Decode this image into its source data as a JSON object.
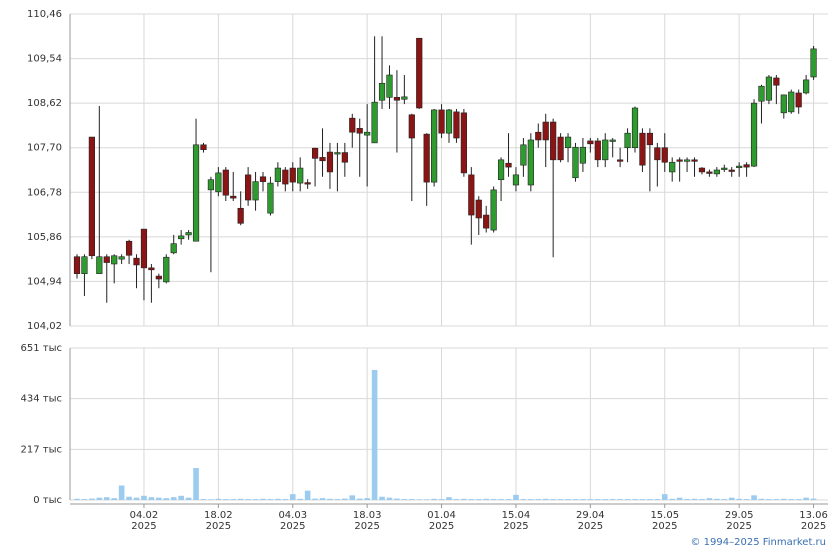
{
  "chart_data": [
    {
      "type": "candlestick",
      "ylim": [
        104.02,
        110.46
      ],
      "yticks": [
        {
          "value": 104.02,
          "label": "104,02"
        },
        {
          "value": 104.94,
          "label": "104,94"
        },
        {
          "value": 105.86,
          "label": "105,86"
        },
        {
          "value": 106.78,
          "label": "106,78"
        },
        {
          "value": 107.7,
          "label": "107,70"
        },
        {
          "value": 108.62,
          "label": "108,62"
        },
        {
          "value": 109.54,
          "label": "109,54"
        },
        {
          "value": 110.46,
          "label": "110,46"
        }
      ],
      "grid": true,
      "up_color": "#2f9a2f",
      "down_color": "#8b1414",
      "open": [
        105.45,
        105.1,
        107.92,
        105.1,
        105.45,
        105.3,
        105.4,
        105.77,
        105.42,
        106.02,
        105.22,
        105.05,
        104.93,
        105.53,
        105.82,
        105.9,
        105.77,
        107.76,
        106.83,
        106.79,
        107.24,
        106.7,
        106.45,
        107.14,
        106.62,
        107.1,
        106.35,
        107.0,
        107.24,
        107.28,
        106.97,
        106.98,
        107.69,
        107.5,
        107.61,
        107.57,
        107.6,
        108.31,
        108.1,
        107.96,
        107.8,
        108.68,
        108.74,
        108.74,
        108.7,
        108.38,
        109.96,
        107.98,
        106.99,
        108.48,
        108.0,
        108.44,
        108.42,
        107.14,
        106.62,
        106.31,
        106.0,
        107.04,
        107.38,
        106.93,
        107.34,
        106.93,
        108.02,
        108.23,
        108.23,
        107.92,
        107.7,
        107.08,
        107.38,
        107.84,
        107.84,
        107.45,
        107.84,
        107.45,
        107.7,
        107.7,
        108.0,
        108.0,
        107.7,
        107.7,
        107.2,
        107.45,
        107.42,
        107.45,
        107.28,
        107.2,
        107.16,
        107.26,
        107.24,
        107.3,
        107.35,
        107.32,
        108.66,
        108.68,
        109.14,
        108.42,
        108.44,
        108.83,
        108.83,
        109.16
      ],
      "high": [
        105.5,
        105.5,
        107.92,
        108.56,
        105.5,
        105.5,
        105.5,
        105.8,
        105.5,
        106.02,
        105.3,
        105.1,
        105.5,
        105.9,
        106.0,
        106.0,
        108.3,
        107.8,
        107.1,
        107.3,
        107.3,
        107.2,
        106.8,
        107.3,
        107.2,
        107.2,
        107.1,
        107.4,
        107.3,
        107.4,
        107.5,
        107.05,
        107.7,
        108.1,
        107.8,
        107.8,
        107.8,
        108.4,
        108.3,
        108.6,
        110.0,
        110.0,
        109.4,
        109.3,
        109.2,
        108.4,
        109.96,
        108.0,
        108.5,
        108.6,
        108.5,
        108.5,
        108.5,
        107.3,
        106.7,
        106.5,
        106.9,
        107.5,
        108.0,
        107.3,
        107.9,
        108.0,
        108.2,
        108.4,
        108.3,
        108.0,
        108.0,
        107.8,
        107.9,
        107.9,
        107.9,
        108.0,
        107.9,
        107.7,
        108.1,
        108.55,
        108.1,
        108.1,
        107.8,
        108.0,
        107.5,
        107.5,
        107.5,
        107.5,
        107.3,
        107.25,
        107.3,
        107.35,
        107.3,
        107.4,
        107.4,
        108.7,
        109.0,
        109.2,
        109.2,
        108.8,
        108.9,
        108.9,
        109.2,
        109.8
      ],
      "low": [
        105.0,
        104.64,
        105.4,
        105.1,
        104.5,
        104.9,
        105.3,
        105.3,
        104.8,
        104.55,
        104.5,
        104.8,
        104.9,
        105.5,
        105.7,
        105.8,
        105.77,
        107.6,
        105.13,
        106.7,
        106.6,
        106.6,
        106.1,
        106.5,
        106.4,
        106.8,
        106.3,
        106.9,
        106.8,
        106.8,
        106.8,
        106.85,
        106.9,
        107.1,
        106.85,
        106.8,
        107.1,
        107.7,
        107.1,
        106.9,
        107.8,
        108.5,
        108.5,
        107.6,
        108.6,
        106.6,
        108.5,
        106.5,
        106.9,
        107.9,
        107.8,
        107.8,
        107.1,
        105.7,
        105.9,
        105.95,
        105.95,
        106.6,
        107.1,
        106.8,
        107.1,
        106.8,
        107.7,
        107.3,
        105.44,
        107.4,
        107.4,
        107.0,
        107.2,
        107.6,
        107.3,
        107.3,
        107.5,
        107.3,
        107.4,
        107.6,
        107.2,
        106.8,
        106.9,
        107.2,
        107.0,
        107.0,
        107.2,
        107.1,
        107.15,
        107.1,
        107.1,
        107.2,
        107.1,
        107.1,
        107.1,
        107.3,
        108.2,
        108.6,
        108.6,
        108.3,
        108.4,
        108.4,
        108.8,
        109.1
      ],
      "close": [
        105.1,
        105.45,
        105.47,
        105.45,
        105.33,
        105.47,
        105.45,
        105.48,
        105.28,
        105.22,
        105.18,
        104.99,
        105.44,
        105.72,
        105.88,
        105.95,
        107.76,
        107.66,
        107.04,
        107.18,
        106.72,
        106.66,
        106.14,
        106.62,
        107.0,
        107.0,
        106.97,
        107.28,
        106.95,
        106.99,
        107.28,
        106.96,
        107.48,
        107.43,
        107.2,
        107.6,
        107.4,
        108.02,
        108.0,
        108.02,
        108.64,
        109.03,
        109.2,
        108.68,
        108.75,
        107.9,
        108.52,
        106.99,
        108.48,
        108.0,
        108.48,
        107.9,
        107.18,
        106.31,
        106.25,
        106.04,
        106.83,
        107.45,
        107.3,
        107.14,
        107.76,
        107.86,
        107.86,
        107.86,
        107.45,
        107.45,
        107.92,
        107.71,
        107.71,
        107.78,
        107.45,
        107.86,
        107.86,
        107.43,
        108.0,
        108.52,
        107.34,
        107.76,
        107.45,
        107.4,
        107.4,
        107.43,
        107.45,
        107.43,
        107.2,
        107.18,
        107.24,
        107.28,
        107.22,
        107.32,
        107.3,
        108.62,
        108.97,
        109.16,
        108.99,
        108.79,
        108.85,
        108.54,
        109.1,
        109.74
      ]
    },
    {
      "type": "bar",
      "ylim": [
        0,
        651
      ],
      "yticks": [
        {
          "value": 0,
          "label": "0 тыс"
        },
        {
          "value": 217,
          "label": "217 тыс"
        },
        {
          "value": 434,
          "label": "434 тыс"
        },
        {
          "value": 651,
          "label": "651 тыс"
        }
      ],
      "grid": true,
      "color": "#9ccbf0",
      "categories": [
        null,
        null,
        null,
        null,
        null,
        null,
        null,
        null,
        null,
        "04.02 2025",
        null,
        null,
        null,
        null,
        null,
        null,
        null,
        null,
        null,
        "18.02 2025",
        null,
        null,
        null,
        null,
        null,
        null,
        null,
        null,
        null,
        "04.03 2025",
        null,
        null,
        null,
        null,
        null,
        null,
        null,
        null,
        null,
        "18.03 2025",
        null,
        null,
        null,
        null,
        null,
        null,
        null,
        null,
        null,
        "01.04 2025",
        null,
        null,
        null,
        null,
        null,
        null,
        null,
        null,
        null,
        "15.04 2025",
        null,
        null,
        null,
        null,
        null,
        null,
        null,
        null,
        null,
        "29.04 2025",
        null,
        null,
        null,
        null,
        null,
        null,
        null,
        null,
        null,
        "15.05 2025",
        null,
        null,
        null,
        null,
        null,
        null,
        null,
        null,
        null,
        "29.05 2025",
        null,
        null,
        null,
        null,
        null,
        null,
        null,
        null,
        null,
        "13.06 2025"
      ],
      "values": [
        5,
        4,
        6,
        10,
        12,
        8,
        62,
        14,
        10,
        18,
        12,
        10,
        8,
        12,
        18,
        10,
        137,
        4,
        3,
        5,
        4,
        4,
        5,
        4,
        4,
        5,
        4,
        5,
        4,
        25,
        5,
        40,
        6,
        8,
        5,
        4,
        6,
        20,
        6,
        8,
        557,
        14,
        10,
        6,
        4,
        4,
        3,
        3,
        5,
        4,
        12,
        4,
        5,
        4,
        4,
        5,
        4,
        4,
        4,
        22,
        4,
        4,
        4,
        5,
        4,
        4,
        4,
        4,
        4,
        4,
        4,
        4,
        4,
        4,
        4,
        4,
        4,
        4,
        4,
        25,
        5,
        10,
        4,
        5,
        4,
        8,
        5,
        4,
        10,
        5,
        4,
        20,
        5,
        4,
        4,
        5,
        4,
        4,
        10,
        6
      ]
    }
  ],
  "footer": "© 1994–2025 Finmarket.ru"
}
